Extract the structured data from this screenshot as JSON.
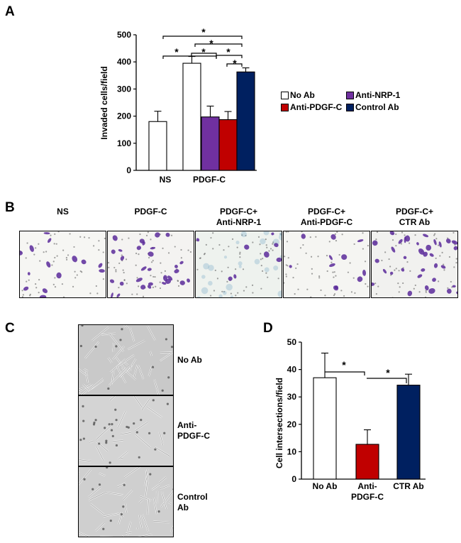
{
  "panels": {
    "A": "A",
    "B": "B",
    "C": "C",
    "D": "D"
  },
  "colors": {
    "no_ab": "#ffffff",
    "anti_nrp1": "#7030a0",
    "anti_pdgfc": "#c00000",
    "control_ab": "#002060",
    "stain": "#5b2a9a"
  },
  "panel_a": {
    "legend": [
      "No Ab",
      "Anti-NRP-1",
      "Anti-PDGF-C",
      "Control Ab"
    ],
    "x_groups": [
      "NS",
      "PDGF-C"
    ],
    "sig": [
      "*",
      "*",
      "*",
      "*",
      "*",
      "*"
    ]
  },
  "panel_b": {
    "titles": [
      {
        "l1": "NS",
        "l2": ""
      },
      {
        "l1": "PDGF-C",
        "l2": ""
      },
      {
        "l1": "PDGF-C+",
        "l2": "Anti-NRP-1"
      },
      {
        "l1": "PDGF-C+",
        "l2": "Anti-PDGF-C"
      },
      {
        "l1": "PDGF-C+",
        "l2": "CTR Ab"
      }
    ]
  },
  "panel_c": {
    "labels": [
      {
        "l1": "No Ab",
        "l2": ""
      },
      {
        "l1": "Anti-",
        "l2": "PDGF-C"
      },
      {
        "l1": "Control",
        "l2": "Ab"
      }
    ]
  },
  "panel_d": {
    "sig": [
      "*",
      "*"
    ]
  },
  "chart_data": [
    {
      "type": "bar",
      "panel": "A",
      "title": "",
      "xlabel": "",
      "ylabel": "Invaded cells/field",
      "ylim": [
        0,
        500
      ],
      "yticks": [
        0,
        100,
        200,
        300,
        400,
        500
      ],
      "categories": [
        "NS",
        "PDGF-C No Ab",
        "PDGF-C Anti-NRP-1",
        "PDGF-C Anti-PDGF-C",
        "PDGF-C Control Ab"
      ],
      "values": [
        180,
        395,
        197,
        187,
        363
      ],
      "errors": [
        38,
        25,
        40,
        30,
        15
      ],
      "bar_colors": [
        "#ffffff",
        "#ffffff",
        "#7030a0",
        "#c00000",
        "#002060"
      ]
    },
    {
      "type": "bar",
      "panel": "D",
      "title": "",
      "xlabel": "",
      "ylabel": "Cell intersections/field",
      "ylim": [
        0,
        50
      ],
      "yticks": [
        0,
        10,
        20,
        30,
        40,
        50
      ],
      "categories": [
        "No Ab",
        "Anti-PDGF-C",
        "CTR Ab"
      ],
      "tick_labels": [
        [
          "No Ab"
        ],
        [
          "Anti-",
          "PDGF-C"
        ],
        [
          "CTR Ab"
        ]
      ],
      "values": [
        37,
        12.7,
        34.3
      ],
      "errors": [
        9,
        5.3,
        4
      ],
      "bar_colors": [
        "#ffffff",
        "#c00000",
        "#002060"
      ]
    }
  ]
}
